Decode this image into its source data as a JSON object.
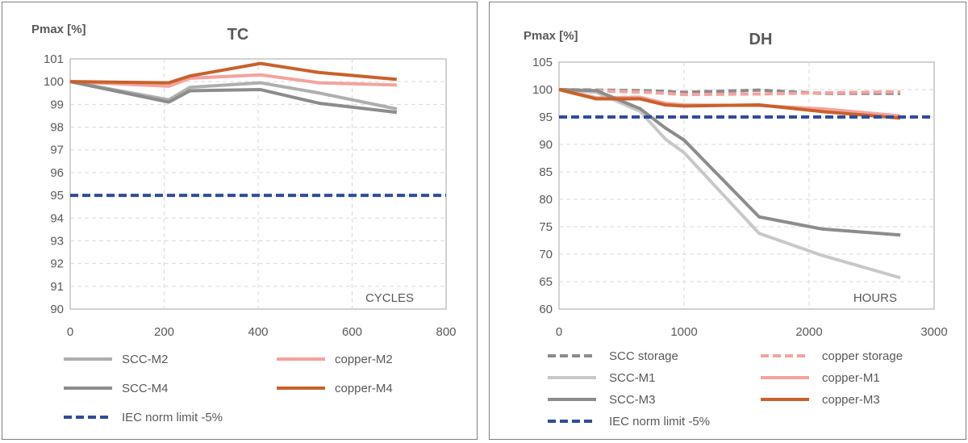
{
  "chart_data": [
    {
      "type": "line",
      "title": "TC",
      "ylabel": "Pmax [%]",
      "xlabel": "CYCLES",
      "xlim": [
        0,
        800
      ],
      "ylim": [
        90,
        101
      ],
      "xticks": [
        0,
        200,
        400,
        600,
        800
      ],
      "yticks": [
        90,
        91,
        92,
        93,
        94,
        95,
        96,
        97,
        98,
        99,
        100,
        101
      ],
      "grid": "dashed",
      "series": [
        {
          "name": "SCC-M2",
          "color": "#aeaeae",
          "dash": "solid",
          "x": [
            0,
            210,
            255,
            405,
            530,
            695
          ],
          "y": [
            100,
            99.2,
            99.75,
            99.95,
            99.5,
            98.8
          ]
        },
        {
          "name": "copper-M2",
          "color": "#f4a39e",
          "dash": "solid",
          "x": [
            0,
            210,
            255,
            405,
            530,
            695
          ],
          "y": [
            100,
            99.8,
            100.15,
            100.3,
            99.95,
            99.85
          ]
        },
        {
          "name": "SCC-M4",
          "color": "#8c8c8c",
          "dash": "solid",
          "x": [
            0,
            210,
            255,
            405,
            530,
            695
          ],
          "y": [
            100,
            99.1,
            99.6,
            99.65,
            99.05,
            98.65
          ]
        },
        {
          "name": "copper-M4",
          "color": "#c9612b",
          "dash": "solid",
          "x": [
            0,
            210,
            255,
            405,
            530,
            695
          ],
          "y": [
            100,
            99.95,
            100.25,
            100.8,
            100.4,
            100.1
          ]
        },
        {
          "name": "IEC norm limit -5%",
          "color": "#2f4c9c",
          "dash": "dashed",
          "x": [
            0,
            800
          ],
          "y": [
            95,
            95
          ]
        }
      ]
    },
    {
      "type": "line",
      "title": "DH",
      "ylabel": "Pmax [%]",
      "xlabel": "HOURS",
      "xlim": [
        0,
        3000
      ],
      "ylim": [
        60,
        105
      ],
      "xticks": [
        0,
        1000,
        2000,
        3000
      ],
      "yticks": [
        60,
        65,
        70,
        75,
        80,
        85,
        90,
        95,
        100,
        105
      ],
      "grid": "dashed",
      "series": [
        {
          "name": "SCC storage",
          "color": "#8c8c8c",
          "dash": "dashed",
          "x": [
            0,
            700,
            1000,
            1600,
            2100,
            2730
          ],
          "y": [
            100,
            99.8,
            99.5,
            99.9,
            99.3,
            99.3
          ]
        },
        {
          "name": "copper storage",
          "color": "#f4a39e",
          "dash": "dashed",
          "x": [
            0,
            700,
            1000,
            1600,
            2100,
            2730
          ],
          "y": [
            100,
            99.5,
            99.1,
            99.2,
            99.4,
            99.6
          ]
        },
        {
          "name": "SCC-M1",
          "color": "#c8c8c8",
          "dash": "solid",
          "x": [
            0,
            300,
            650,
            850,
            1000,
            1600,
            2100,
            2730
          ],
          "y": [
            100,
            99.5,
            96,
            91,
            88.5,
            73.8,
            69.8,
            65.7
          ]
        },
        {
          "name": "copper-M1",
          "color": "#f4a39e",
          "dash": "solid",
          "x": [
            0,
            300,
            650,
            850,
            1000,
            1600,
            2100,
            2730
          ],
          "y": [
            100,
            98.5,
            98.6,
            97.5,
            97.2,
            97.1,
            96.5,
            95.2
          ]
        },
        {
          "name": "SCC-M3",
          "color": "#8c8c8c",
          "dash": "solid",
          "x": [
            0,
            300,
            650,
            850,
            1000,
            1600,
            2100,
            2730
          ],
          "y": [
            100,
            99.8,
            96.5,
            93,
            90.8,
            76.8,
            74.6,
            73.5
          ]
        },
        {
          "name": "copper-M3",
          "color": "#c9612b",
          "dash": "solid",
          "x": [
            0,
            300,
            650,
            850,
            1000,
            1600,
            2100,
            2730
          ],
          "y": [
            100,
            98.3,
            98.3,
            97.2,
            97,
            97.2,
            96,
            94.8
          ]
        },
        {
          "name": "IEC norm limit -5%",
          "color": "#2f4c9c",
          "dash": "dashed",
          "x": [
            0,
            3000
          ],
          "y": [
            95,
            95
          ]
        }
      ]
    }
  ]
}
